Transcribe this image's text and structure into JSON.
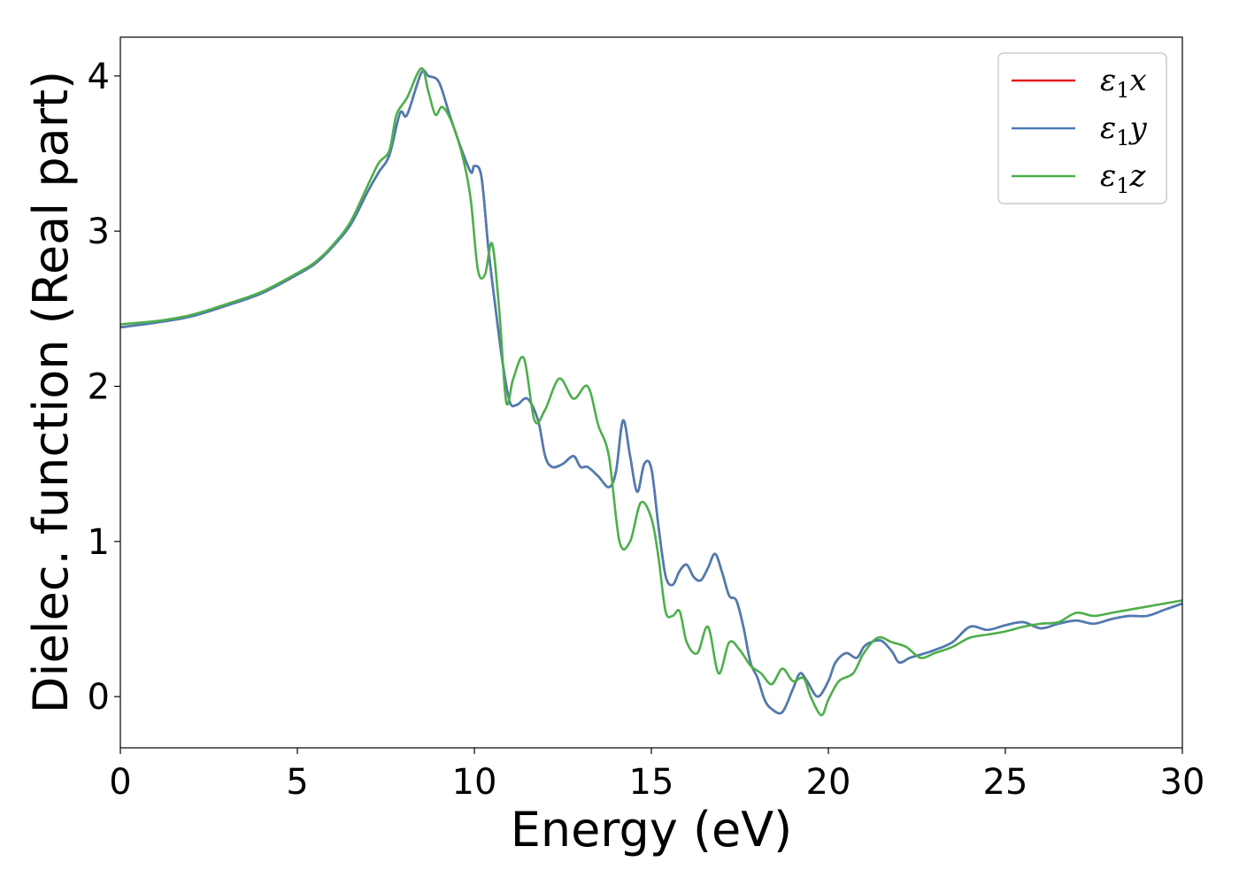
{
  "chart_data": {
    "type": "line",
    "xlabel": "Energy (eV)",
    "ylabel": "Dielec. function (Real part)",
    "xlim": [
      0,
      30
    ],
    "ylim": [
      -0.33,
      4.25
    ],
    "x_ticks": [
      "0",
      "5",
      "10",
      "15",
      "20",
      "25",
      "30"
    ],
    "y_ticks": [
      "0",
      "1",
      "2",
      "3",
      "4"
    ],
    "grid": false,
    "legend_position": "top-right",
    "series": [
      {
        "name": "ε1x",
        "legend": {
          "base": "ε",
          "sub": "1",
          "tail": "x"
        },
        "color": "#e41a1c",
        "x": [
          0,
          1,
          2,
          3,
          4,
          5,
          5.5,
          6,
          6.5,
          7,
          7.3,
          7.6,
          7.9,
          8.1,
          8.5,
          8.7,
          9,
          9.3,
          9.6,
          9.9,
          10,
          10.2,
          10.4,
          10.6,
          10.8,
          11,
          11.2,
          11.5,
          11.8,
          12,
          12.2,
          12.5,
          12.8,
          13,
          13.2,
          13.5,
          13.8,
          14,
          14.2,
          14.4,
          14.6,
          14.8,
          15,
          15.2,
          15.4,
          15.6,
          15.8,
          16,
          16.2,
          16.4,
          16.6,
          16.8,
          17,
          17.2,
          17.4,
          17.6,
          17.8,
          18,
          18.2,
          18.4,
          18.7,
          19,
          19.2,
          19.4,
          19.7,
          20,
          20.2,
          20.5,
          20.8,
          21,
          21.2,
          21.5,
          21.8,
          22,
          22.3,
          22.6,
          23,
          23.5,
          24,
          24.5,
          25,
          25.5,
          26,
          26.5,
          27,
          27.5,
          28,
          28.5,
          29,
          29.5,
          30
        ],
        "y": [
          2.38,
          2.41,
          2.45,
          2.52,
          2.6,
          2.72,
          2.79,
          2.9,
          3.04,
          3.26,
          3.38,
          3.49,
          3.76,
          3.75,
          4.02,
          4.0,
          3.96,
          3.75,
          3.55,
          3.38,
          3.42,
          3.35,
          2.88,
          2.5,
          2.15,
          1.9,
          1.88,
          1.92,
          1.78,
          1.55,
          1.48,
          1.5,
          1.55,
          1.48,
          1.48,
          1.42,
          1.35,
          1.45,
          1.78,
          1.55,
          1.32,
          1.5,
          1.47,
          1.1,
          0.78,
          0.72,
          0.81,
          0.85,
          0.77,
          0.75,
          0.83,
          0.92,
          0.8,
          0.65,
          0.62,
          0.45,
          0.22,
          0.12,
          -0.02,
          -0.08,
          -0.1,
          0.05,
          0.15,
          0.1,
          0.0,
          0.1,
          0.22,
          0.28,
          0.25,
          0.32,
          0.35,
          0.36,
          0.29,
          0.22,
          0.25,
          0.27,
          0.3,
          0.35,
          0.45,
          0.43,
          0.46,
          0.48,
          0.44,
          0.47,
          0.49,
          0.47,
          0.5,
          0.52,
          0.52,
          0.56,
          0.6
        ]
      },
      {
        "name": "ε1y",
        "legend": {
          "base": "ε",
          "sub": "1",
          "tail": "y"
        },
        "color": "#4a7db5",
        "x": [
          0,
          1,
          2,
          3,
          4,
          5,
          5.5,
          6,
          6.5,
          7,
          7.3,
          7.6,
          7.9,
          8.1,
          8.5,
          8.7,
          9,
          9.3,
          9.6,
          9.9,
          10,
          10.2,
          10.4,
          10.6,
          10.8,
          11,
          11.2,
          11.5,
          11.8,
          12,
          12.2,
          12.5,
          12.8,
          13,
          13.2,
          13.5,
          13.8,
          14,
          14.2,
          14.4,
          14.6,
          14.8,
          15,
          15.2,
          15.4,
          15.6,
          15.8,
          16,
          16.2,
          16.4,
          16.6,
          16.8,
          17,
          17.2,
          17.4,
          17.6,
          17.8,
          18,
          18.2,
          18.4,
          18.7,
          19,
          19.2,
          19.4,
          19.7,
          20,
          20.2,
          20.5,
          20.8,
          21,
          21.2,
          21.5,
          21.8,
          22,
          22.3,
          22.6,
          23,
          23.5,
          24,
          24.5,
          25,
          25.5,
          26,
          26.5,
          27,
          27.5,
          28,
          28.5,
          29,
          29.5,
          30
        ],
        "y": [
          2.38,
          2.41,
          2.45,
          2.52,
          2.6,
          2.72,
          2.79,
          2.9,
          3.04,
          3.26,
          3.38,
          3.49,
          3.76,
          3.75,
          4.02,
          4.0,
          3.96,
          3.75,
          3.55,
          3.38,
          3.42,
          3.35,
          2.88,
          2.5,
          2.15,
          1.9,
          1.88,
          1.92,
          1.78,
          1.55,
          1.48,
          1.5,
          1.55,
          1.48,
          1.48,
          1.42,
          1.35,
          1.45,
          1.78,
          1.55,
          1.32,
          1.5,
          1.47,
          1.1,
          0.78,
          0.72,
          0.81,
          0.85,
          0.77,
          0.75,
          0.83,
          0.92,
          0.8,
          0.65,
          0.62,
          0.45,
          0.22,
          0.12,
          -0.02,
          -0.08,
          -0.1,
          0.05,
          0.15,
          0.1,
          0.0,
          0.1,
          0.22,
          0.28,
          0.25,
          0.32,
          0.35,
          0.36,
          0.29,
          0.22,
          0.25,
          0.27,
          0.3,
          0.35,
          0.45,
          0.43,
          0.46,
          0.48,
          0.44,
          0.47,
          0.49,
          0.47,
          0.5,
          0.52,
          0.52,
          0.56,
          0.6
        ]
      },
      {
        "name": "ε1z",
        "legend": {
          "base": "ε",
          "sub": "1",
          "tail": "z"
        },
        "color": "#4daf4a",
        "x": [
          0,
          1,
          2,
          3,
          4,
          5,
          5.5,
          6,
          6.5,
          7,
          7.3,
          7.6,
          7.8,
          8.1,
          8.5,
          8.7,
          8.9,
          9.1,
          9.4,
          9.7,
          9.9,
          10.1,
          10.3,
          10.5,
          10.7,
          10.9,
          11.1,
          11.4,
          11.7,
          12,
          12.4,
          12.8,
          13.2,
          13.5,
          13.8,
          14.1,
          14.4,
          14.7,
          15,
          15.2,
          15.4,
          15.6,
          15.8,
          16.0,
          16.3,
          16.6,
          16.9,
          17.2,
          17.5,
          17.8,
          18.1,
          18.4,
          18.7,
          19.0,
          19.3,
          19.5,
          19.8,
          20,
          20.3,
          20.7,
          21,
          21.4,
          21.8,
          22.2,
          22.6,
          23,
          23.5,
          24,
          24.5,
          25,
          25.5,
          26,
          26.5,
          27,
          27.5,
          28,
          28.5,
          29,
          29.5,
          30
        ],
        "y": [
          2.4,
          2.42,
          2.46,
          2.53,
          2.61,
          2.73,
          2.8,
          2.91,
          3.06,
          3.3,
          3.44,
          3.52,
          3.75,
          3.86,
          4.05,
          3.9,
          3.75,
          3.8,
          3.68,
          3.45,
          3.2,
          2.75,
          2.72,
          2.92,
          2.5,
          1.9,
          2.05,
          2.18,
          1.78,
          1.85,
          2.05,
          1.92,
          2.0,
          1.75,
          1.55,
          1.0,
          1.0,
          1.25,
          1.15,
          0.9,
          0.55,
          0.52,
          0.55,
          0.35,
          0.28,
          0.45,
          0.15,
          0.35,
          0.3,
          0.2,
          0.15,
          0.08,
          0.18,
          0.1,
          0.12,
          0.0,
          -0.12,
          -0.02,
          0.1,
          0.15,
          0.28,
          0.38,
          0.35,
          0.32,
          0.25,
          0.28,
          0.32,
          0.38,
          0.4,
          0.42,
          0.45,
          0.47,
          0.48,
          0.54,
          0.52,
          0.54,
          0.56,
          0.58,
          0.6,
          0.62
        ]
      }
    ]
  }
}
